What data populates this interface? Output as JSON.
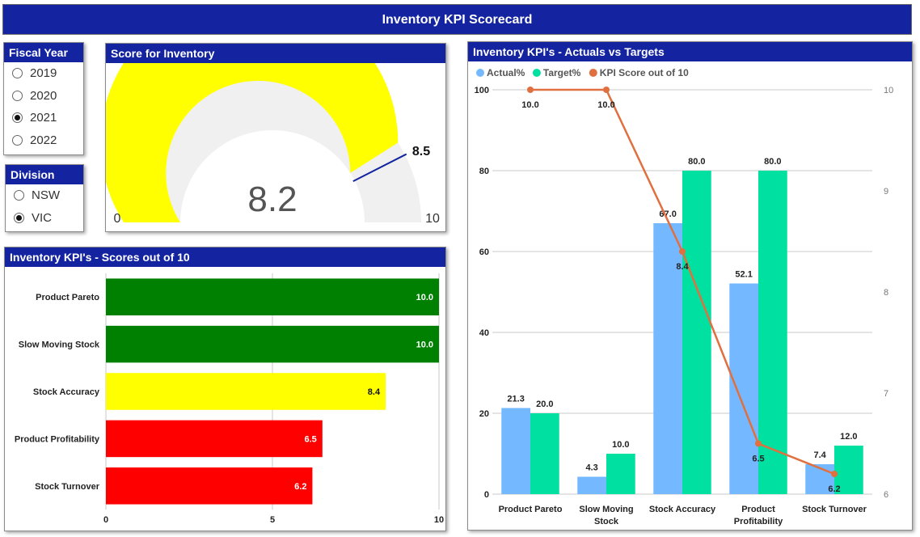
{
  "header": {
    "title": "Inventory KPI Scorecard"
  },
  "fiscal_year": {
    "title": "Fiscal Year",
    "options": [
      {
        "label": "2019",
        "selected": false
      },
      {
        "label": "2020",
        "selected": false
      },
      {
        "label": "2021",
        "selected": true
      },
      {
        "label": "2022",
        "selected": false
      }
    ]
  },
  "division": {
    "title": "Division",
    "options": [
      {
        "label": "NSW",
        "selected": false
      },
      {
        "label": "VIC",
        "selected": true
      }
    ]
  },
  "gauge": {
    "title": "Score for Inventory",
    "value": 8.2,
    "value_label": "8.2",
    "target": 8.5,
    "target_label": "8.5",
    "min": 0,
    "max": 10,
    "min_label": "0",
    "max_label": "10",
    "fill_color": "#ffff00",
    "track_color": "#f0f0f0",
    "target_color": "#1424a0"
  },
  "scores_chart": {
    "title": "Inventory KPI's - Scores out of 10",
    "chart_data": {
      "type": "bar",
      "orientation": "horizontal",
      "categories": [
        "Product Pareto",
        "Slow Moving Stock",
        "Stock Accuracy",
        "Product Profitability",
        "Stock Turnover"
      ],
      "values": [
        10.0,
        10.0,
        8.4,
        6.5,
        6.2
      ],
      "value_labels": [
        "10.0",
        "10.0",
        "8.4",
        "6.5",
        "6.2"
      ],
      "colors": [
        "#008000",
        "#008000",
        "#ffff00",
        "#ff0000",
        "#ff0000"
      ],
      "xlim": [
        0,
        10
      ],
      "xticks": [
        0,
        5,
        10
      ],
      "xtick_labels": [
        "0",
        "5",
        "10"
      ],
      "grid": true
    }
  },
  "actuals_chart": {
    "title": "Inventory KPI's - Actuals vs Targets",
    "chart_data": {
      "type": "bar",
      "combo": "bar+line",
      "categories": [
        "Product Pareto",
        "Slow Moving Stock",
        "Stock Accuracy",
        "Product Profitability",
        "Stock Turnover"
      ],
      "category_lines": [
        [
          "Product Pareto"
        ],
        [
          "Slow Moving",
          "Stock"
        ],
        [
          "Stock Accuracy"
        ],
        [
          "Product",
          "Profitability"
        ],
        [
          "Stock Turnover"
        ]
      ],
      "series": [
        {
          "name": "Actual%",
          "type": "bar",
          "axis": "left",
          "color": "#74b9ff",
          "values": [
            21.3,
            4.3,
            67.0,
            52.1,
            7.4
          ],
          "labels": [
            "21.3",
            "4.3",
            "67.0",
            "52.1",
            "7.4"
          ]
        },
        {
          "name": "Target%",
          "type": "bar",
          "axis": "left",
          "color": "#00e0a0",
          "values": [
            20.0,
            10.0,
            80.0,
            80.0,
            12.0
          ],
          "labels": [
            "20.0",
            "10.0",
            "80.0",
            "80.0",
            "12.0"
          ]
        },
        {
          "name": "KPI Score out of 10",
          "type": "line",
          "axis": "right",
          "color": "#e07040",
          "values": [
            10.0,
            10.0,
            8.4,
            6.5,
            6.2
          ],
          "labels": [
            "10.0",
            "10.0",
            "8.4",
            "6.5",
            "6.2"
          ]
        }
      ],
      "ylim_left": [
        0,
        100
      ],
      "yticks_left": [
        0,
        20,
        40,
        60,
        80,
        100
      ],
      "ytick_labels_left": [
        "0",
        "20",
        "40",
        "60",
        "80",
        "100"
      ],
      "ylim_right": [
        6,
        10
      ],
      "yticks_right": [
        6,
        7,
        8,
        9,
        10
      ],
      "ytick_labels_right": [
        "6",
        "7",
        "8",
        "9",
        "10"
      ],
      "legend": "top-left",
      "grid": true
    }
  }
}
